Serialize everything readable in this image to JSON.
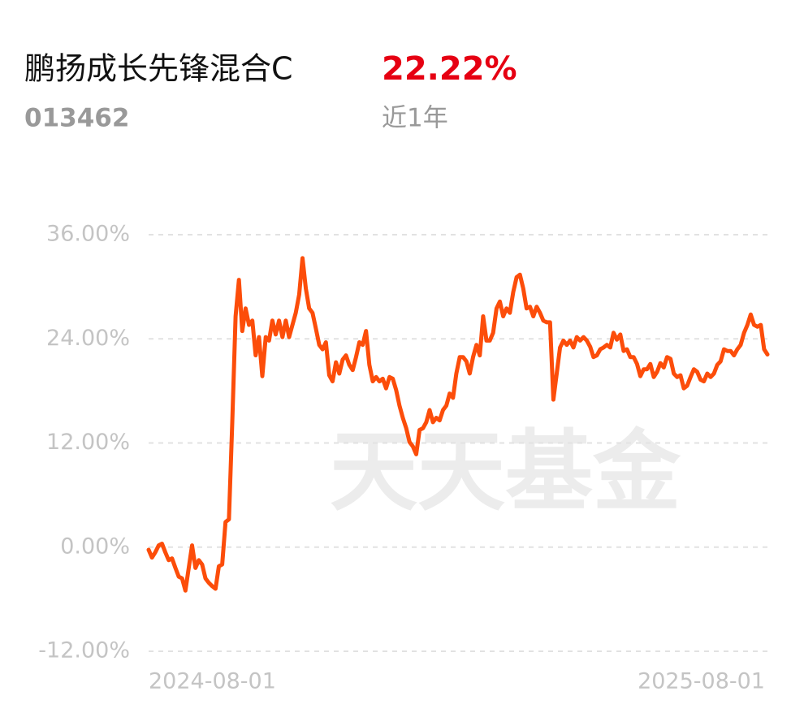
{
  "header": {
    "name": "鹏扬成长先锋混合C",
    "return": "22.22%",
    "code": "013462",
    "period": "近1年"
  },
  "watermark": "天天基金",
  "chart_data": {
    "type": "line",
    "color": "#fc4d0a",
    "categories": [
      "2024-08-01",
      null,
      null,
      null,
      null,
      null,
      null,
      null,
      null,
      null,
      null,
      null,
      null,
      null,
      null,
      null,
      null,
      null,
      null,
      null,
      null,
      null,
      null,
      null,
      null,
      null,
      null,
      null,
      null,
      null,
      null,
      null,
      null,
      null,
      null,
      null,
      null,
      null,
      null,
      null,
      null,
      null,
      null,
      null,
      null,
      null,
      null,
      null,
      null,
      null,
      null,
      null,
      null,
      null,
      null,
      null,
      null,
      null,
      null,
      null,
      null,
      null,
      null,
      null,
      null,
      null,
      null,
      null,
      null,
      null,
      null,
      null,
      null,
      null,
      null,
      null,
      null,
      null,
      null,
      null,
      null,
      null,
      null,
      null,
      null,
      null,
      null,
      null,
      null,
      null,
      null,
      null,
      null,
      null,
      null,
      null,
      null,
      null,
      null,
      null,
      null,
      null,
      null,
      null,
      null,
      null,
      null,
      null,
      null,
      null,
      null,
      null,
      null,
      null,
      null,
      null,
      null,
      null,
      null,
      null,
      null,
      null,
      null,
      null,
      null,
      null,
      null,
      null,
      null,
      null,
      null,
      null,
      null,
      null,
      null,
      null,
      null,
      null,
      null,
      null,
      null,
      null,
      null,
      null,
      null,
      null,
      null,
      null,
      null,
      null,
      null,
      null,
      null,
      null,
      null,
      null,
      null,
      null,
      null,
      null,
      null,
      null,
      null,
      null,
      null,
      null,
      null,
      null,
      null,
      null,
      null,
      null,
      null,
      null,
      null,
      null,
      null,
      null,
      null,
      null,
      null,
      null,
      null,
      null,
      null,
      "2025-08-01"
    ],
    "values": [
      -0.3,
      -1.2,
      -0.6,
      0.2,
      0.4,
      -0.6,
      -1.5,
      -1.3,
      -2.4,
      -3.4,
      -3.6,
      -5.0,
      -2.4,
      0.2,
      -2.4,
      -1.5,
      -2.0,
      -3.6,
      -4.1,
      -4.5,
      -4.8,
      -2.2,
      -2.0,
      2.9,
      3.2,
      14.4,
      26.6,
      30.8,
      24.9,
      27.5,
      25.6,
      26.1,
      22.1,
      24.2,
      19.7,
      24.2,
      23.8,
      26.1,
      24.5,
      26.1,
      24.2,
      26.1,
      24.2,
      25.6,
      27.0,
      29.1,
      33.3,
      29.8,
      27.5,
      27.0,
      25.2,
      23.3,
      22.8,
      23.6,
      19.8,
      19.1,
      21.3,
      20.0,
      21.6,
      22.1,
      21.0,
      20.4,
      21.9,
      23.6,
      23.3,
      24.9,
      21.0,
      19.1,
      19.6,
      19.1,
      19.4,
      18.3,
      19.6,
      19.4,
      18.1,
      16.3,
      14.9,
      13.7,
      12.1,
      11.6,
      10.7,
      13.5,
      13.7,
      14.4,
      15.8,
      14.4,
      14.9,
      14.6,
      15.8,
      16.3,
      17.7,
      17.2,
      20.0,
      21.9,
      21.9,
      21.4,
      20.0,
      21.9,
      23.3,
      22.1,
      26.6,
      23.8,
      23.8,
      24.7,
      27.5,
      28.3,
      26.6,
      27.5,
      27.0,
      29.4,
      31.1,
      31.4,
      29.8,
      27.5,
      27.7,
      26.6,
      27.7,
      27.0,
      26.1,
      25.9,
      25.9,
      17.0,
      20.0,
      23.0,
      23.8,
      23.3,
      23.8,
      23.0,
      24.2,
      23.8,
      24.2,
      23.8,
      23.1,
      21.9,
      22.1,
      22.8,
      23.0,
      23.3,
      23.0,
      24.7,
      23.9,
      24.5,
      22.6,
      22.8,
      21.9,
      21.9,
      21.1,
      19.7,
      20.5,
      20.5,
      21.1,
      19.6,
      20.2,
      21.2,
      20.7,
      21.9,
      21.7,
      20.0,
      19.6,
      19.8,
      18.3,
      18.6,
      19.6,
      20.5,
      20.2,
      19.3,
      19.1,
      20.0,
      19.6,
      20.0,
      21.0,
      21.4,
      22.8,
      22.6,
      22.6,
      22.1,
      22.8,
      23.3,
      24.7,
      25.6,
      26.8,
      25.6,
      25.4,
      25.6,
      22.8,
      22.2
    ],
    "ylim": [
      -12,
      36
    ],
    "yticks": [
      {
        "value": -12,
        "label": "-12.00%"
      },
      {
        "value": 0,
        "label": "0.00%"
      },
      {
        "value": 12,
        "label": "12.00%"
      },
      {
        "value": 24,
        "label": "24.00%"
      },
      {
        "value": 36,
        "label": "36.00%"
      }
    ],
    "grid": true
  }
}
